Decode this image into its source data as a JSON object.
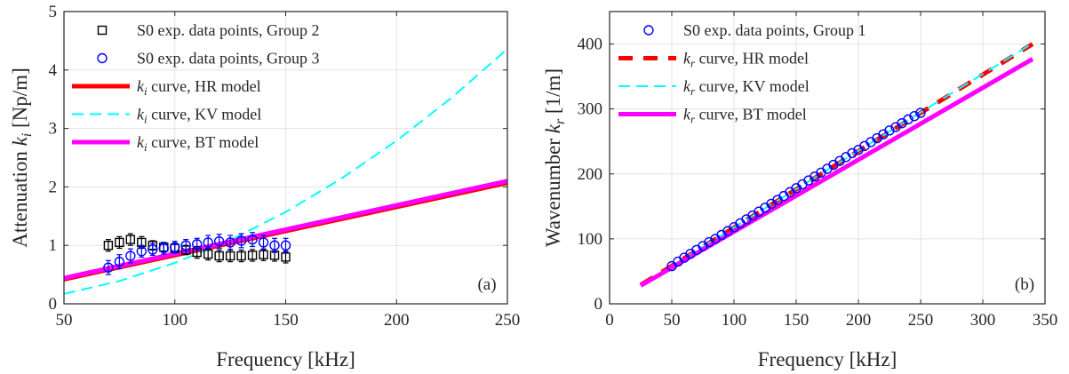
{
  "chart_data": [
    {
      "type": "scatter",
      "panel_label": "(a)",
      "xlabel": "Frequency [kHz]",
      "ylabel_prefix": "Attenuation ",
      "ylabel_sym": "k",
      "ylabel_sub": "i",
      "ylabel_unit": " [Np/m]",
      "xlim": [
        50,
        250
      ],
      "ylim": [
        0,
        5
      ],
      "xticks": [
        50,
        100,
        150,
        200,
        250
      ],
      "yticks": [
        0,
        1,
        2,
        3,
        4,
        5
      ],
      "grid": true,
      "legend_position": "top-left",
      "series": [
        {
          "name": "S0 exp. data points, Group 2",
          "kind": "markers",
          "marker": "square",
          "color": "#000000",
          "x": [
            70,
            75,
            80,
            85,
            90,
            95,
            100,
            105,
            110,
            115,
            120,
            125,
            130,
            135,
            140,
            145,
            150
          ],
          "y": [
            1.0,
            1.05,
            1.1,
            1.05,
            1.0,
            0.97,
            0.95,
            0.92,
            0.88,
            0.85,
            0.82,
            0.82,
            0.82,
            0.83,
            0.84,
            0.83,
            0.8
          ],
          "err": [
            0.1,
            0.1,
            0.1,
            0.1,
            0.08,
            0.08,
            0.08,
            0.08,
            0.1,
            0.1,
            0.1,
            0.1,
            0.1,
            0.1,
            0.1,
            0.1,
            0.1
          ]
        },
        {
          "name": "S0 exp. data points, Group 3",
          "kind": "markers",
          "marker": "circle",
          "color": "#0000ff",
          "x": [
            70,
            75,
            80,
            85,
            90,
            95,
            100,
            105,
            110,
            115,
            120,
            125,
            130,
            135,
            140,
            145,
            150
          ],
          "y": [
            0.62,
            0.72,
            0.82,
            0.9,
            0.93,
            0.95,
            0.97,
            1.0,
            1.02,
            1.05,
            1.07,
            1.05,
            1.08,
            1.1,
            1.05,
            1.0,
            1.0
          ],
          "err": [
            0.12,
            0.12,
            0.12,
            0.1,
            0.1,
            0.1,
            0.1,
            0.1,
            0.1,
            0.12,
            0.12,
            0.12,
            0.12,
            0.12,
            0.12,
            0.12,
            0.12
          ]
        },
        {
          "name_sym": "k",
          "name_sub": "i",
          "name_rest": " curve, HR model",
          "kind": "line",
          "color": "#ff0000",
          "width": 5,
          "dash": "",
          "x": [
            50,
            250
          ],
          "y": [
            0.42,
            2.07
          ]
        },
        {
          "name_sym": "k",
          "name_sub": "i",
          "name_rest": " curve, KV model",
          "kind": "line",
          "color": "#00ffff",
          "width": 2,
          "dash": "13 7",
          "x": [
            50,
            75,
            100,
            125,
            150,
            175,
            200,
            225,
            250
          ],
          "y": [
            0.17,
            0.39,
            0.7,
            1.09,
            1.57,
            2.14,
            2.79,
            3.53,
            4.36
          ]
        },
        {
          "name_sym": "k",
          "name_sub": "i",
          "name_rest": " curve, BT model",
          "kind": "line",
          "color": "#ff00ff",
          "width": 5,
          "dash": "",
          "x": [
            50,
            250
          ],
          "y": [
            0.44,
            2.1
          ]
        }
      ]
    },
    {
      "type": "scatter",
      "panel_label": "(b)",
      "xlabel": "Frequency [kHz]",
      "ylabel_prefix": "Wavenumber ",
      "ylabel_sym": "k",
      "ylabel_sub": "r",
      "ylabel_unit": " [1/m]",
      "xlim": [
        0,
        350
      ],
      "ylim": [
        0,
        450
      ],
      "xticks": [
        0,
        50,
        100,
        150,
        200,
        250,
        300,
        350
      ],
      "yticks": [
        0,
        100,
        200,
        300,
        400
      ],
      "grid": true,
      "legend_position": "top-left",
      "series": [
        {
          "name": "S0 exp. data points, Group 1",
          "kind": "markers",
          "marker": "circle",
          "color": "#0000ff",
          "x": [
            50,
            55,
            60,
            65,
            70,
            75,
            80,
            85,
            90,
            95,
            100,
            105,
            110,
            115,
            120,
            125,
            130,
            135,
            140,
            145,
            150,
            155,
            160,
            165,
            170,
            175,
            180,
            185,
            190,
            195,
            200,
            205,
            210,
            215,
            220,
            225,
            230,
            235,
            240,
            245,
            250
          ],
          "y": [
            58,
            65,
            71,
            77,
            83,
            89,
            95,
            100,
            106,
            112,
            118,
            124,
            130,
            136,
            142,
            148,
            154,
            160,
            166,
            172,
            178,
            184,
            190,
            196,
            202,
            208,
            214,
            220,
            226,
            232,
            237,
            243,
            249,
            255,
            261,
            267,
            272,
            278,
            284,
            289,
            294
          ]
        },
        {
          "name_sym": "k",
          "name_sub": "r",
          "name_rest": " curve, HR model",
          "kind": "line",
          "color": "#ff0000",
          "width": 5,
          "dash": "16 12",
          "x": [
            25,
            340
          ],
          "y": [
            29,
            400
          ]
        },
        {
          "name_sym": "k",
          "name_sub": "r",
          "name_rest": " curve, KV model",
          "kind": "line",
          "color": "#00ffff",
          "width": 2,
          "dash": "13 7",
          "x": [
            25,
            340
          ],
          "y": [
            29,
            401
          ]
        },
        {
          "name_sym": "k",
          "name_sub": "r",
          "name_rest": " curve, BT model",
          "kind": "line",
          "color": "#ff00ff",
          "width": 5,
          "dash": "",
          "x": [
            25,
            340
          ],
          "y": [
            28,
            377
          ]
        }
      ]
    }
  ]
}
